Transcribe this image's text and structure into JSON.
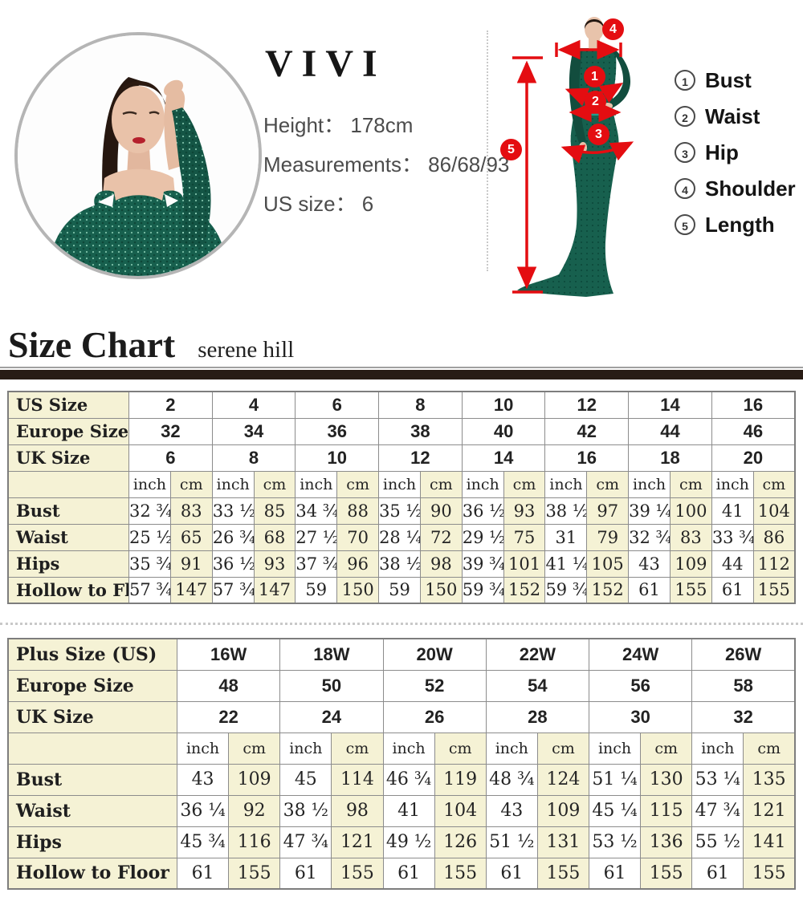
{
  "model_card": {
    "brand": "VIVI",
    "height_line": "Height：  178cm",
    "measurements_line": "Measurements：  86/68/93",
    "us_size_line": "US size：  6"
  },
  "diagram": {
    "markers": [
      "1",
      "2",
      "3",
      "4",
      "5"
    ]
  },
  "legend": {
    "items": [
      {
        "num": "1",
        "label": "Bust"
      },
      {
        "num": "2",
        "label": "Waist"
      },
      {
        "num": "3",
        "label": "Hip"
      },
      {
        "num": "4",
        "label": "Shoulder"
      },
      {
        "num": "5",
        "label": "Length"
      }
    ]
  },
  "size_chart": {
    "title": "Size Chart",
    "subtitle": "serene hill"
  },
  "colors": {
    "accent_red": "#e40d11",
    "table_cream": "#f5f2d5",
    "divider_bar": "#281c15",
    "dress_green": "#17604e"
  },
  "standard_table": {
    "units": [
      "inch",
      "cm"
    ],
    "header_rows": [
      {
        "label": "US Size",
        "values": [
          "2",
          "4",
          "6",
          "8",
          "10",
          "12",
          "14",
          "16"
        ]
      },
      {
        "label": "Europe Size",
        "values": [
          "32",
          "34",
          "36",
          "38",
          "40",
          "42",
          "44",
          "46"
        ]
      },
      {
        "label": "UK Size",
        "values": [
          "6",
          "8",
          "10",
          "12",
          "14",
          "16",
          "18",
          "20"
        ]
      }
    ],
    "data_rows": [
      {
        "label": "Bust",
        "values": [
          [
            "32 ¾",
            "83"
          ],
          [
            "33 ½",
            "85"
          ],
          [
            "34 ¾",
            "88"
          ],
          [
            "35 ½",
            "90"
          ],
          [
            "36 ½",
            "93"
          ],
          [
            "38 ½",
            "97"
          ],
          [
            "39 ¼",
            "100"
          ],
          [
            "41",
            "104"
          ]
        ]
      },
      {
        "label": "Waist",
        "values": [
          [
            "25 ½",
            "65"
          ],
          [
            "26 ¾",
            "68"
          ],
          [
            "27 ½",
            "70"
          ],
          [
            "28 ¼",
            "72"
          ],
          [
            "29 ½",
            "75"
          ],
          [
            "31",
            "79"
          ],
          [
            "32 ¾",
            "83"
          ],
          [
            "33 ¾",
            "86"
          ]
        ]
      },
      {
        "label": "Hips",
        "values": [
          [
            "35 ¾",
            "91"
          ],
          [
            "36 ½",
            "93"
          ],
          [
            "37 ¾",
            "96"
          ],
          [
            "38 ½",
            "98"
          ],
          [
            "39 ¾",
            "101"
          ],
          [
            "41 ¼",
            "105"
          ],
          [
            "43",
            "109"
          ],
          [
            "44",
            "112"
          ]
        ]
      },
      {
        "label": "Hollow to Floor",
        "values": [
          [
            "57 ¾",
            "147"
          ],
          [
            "57 ¾",
            "147"
          ],
          [
            "59",
            "150"
          ],
          [
            "59",
            "150"
          ],
          [
            "59 ¾",
            "152"
          ],
          [
            "59 ¾",
            "152"
          ],
          [
            "61",
            "155"
          ],
          [
            "61",
            "155"
          ]
        ]
      }
    ]
  },
  "plus_table": {
    "units": [
      "inch",
      "cm"
    ],
    "header_rows": [
      {
        "label": "Plus Size (US)",
        "values": [
          "16W",
          "18W",
          "20W",
          "22W",
          "24W",
          "26W"
        ]
      },
      {
        "label": "Europe Size",
        "values": [
          "48",
          "50",
          "52",
          "54",
          "56",
          "58"
        ]
      },
      {
        "label": "UK Size",
        "values": [
          "22",
          "24",
          "26",
          "28",
          "30",
          "32"
        ]
      }
    ],
    "data_rows": [
      {
        "label": "Bust",
        "values": [
          [
            "43",
            "109"
          ],
          [
            "45",
            "114"
          ],
          [
            "46 ¾",
            "119"
          ],
          [
            "48 ¾",
            "124"
          ],
          [
            "51 ¼",
            "130"
          ],
          [
            "53 ¼",
            "135"
          ]
        ]
      },
      {
        "label": "Waist",
        "values": [
          [
            "36 ¼",
            "92"
          ],
          [
            "38 ½",
            "98"
          ],
          [
            "41",
            "104"
          ],
          [
            "43",
            "109"
          ],
          [
            "45 ¼",
            "115"
          ],
          [
            "47 ¾",
            "121"
          ]
        ]
      },
      {
        "label": "Hips",
        "values": [
          [
            "45 ¾",
            "116"
          ],
          [
            "47 ¾",
            "121"
          ],
          [
            "49 ½",
            "126"
          ],
          [
            "51 ½",
            "131"
          ],
          [
            "53 ½",
            "136"
          ],
          [
            "55 ½",
            "141"
          ]
        ]
      },
      {
        "label": "Hollow to Floor",
        "values": [
          [
            "61",
            "155"
          ],
          [
            "61",
            "155"
          ],
          [
            "61",
            "155"
          ],
          [
            "61",
            "155"
          ],
          [
            "61",
            "155"
          ],
          [
            "61",
            "155"
          ]
        ]
      }
    ]
  }
}
